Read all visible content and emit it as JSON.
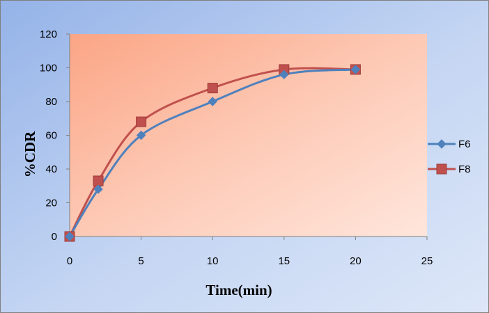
{
  "chart_data": {
    "type": "line",
    "title": "",
    "xlabel": "Time(min)",
    "ylabel": "%CDR",
    "xlim": [
      0,
      25
    ],
    "ylim": [
      0,
      120
    ],
    "xticks": [
      0,
      5,
      10,
      15,
      20,
      25
    ],
    "yticks": [
      0,
      20,
      40,
      60,
      80,
      100,
      120
    ],
    "grid": false,
    "legend_position": "right",
    "smooth": true,
    "series": [
      {
        "name": "F6",
        "color": "#4F81BD",
        "marker": "diamond",
        "x": [
          0,
          2,
          5,
          10,
          15,
          20
        ],
        "y": [
          0,
          28,
          60,
          80,
          96,
          99
        ]
      },
      {
        "name": "F8",
        "color": "#C0504D",
        "marker": "square",
        "x": [
          0,
          2,
          5,
          10,
          15,
          20
        ],
        "y": [
          0,
          33,
          68,
          88,
          99,
          99
        ]
      }
    ]
  }
}
